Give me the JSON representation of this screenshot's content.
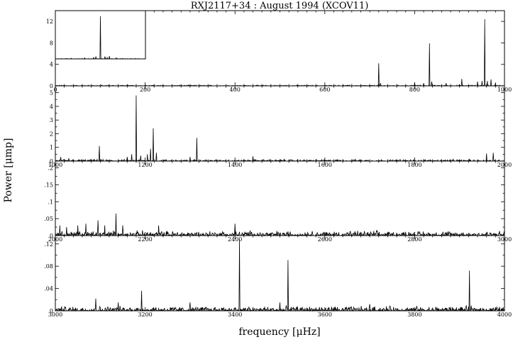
{
  "chart_data": {
    "type": "line",
    "title": "RXJ2117+34 :  August 1994 (XCOV11)",
    "xlabel": "frequency [μHz]",
    "ylabel": "Power [μmp]",
    "grid": false,
    "panels": [
      {
        "xlim": [
          0,
          1000
        ],
        "ylim": [
          0,
          14
        ],
        "xticks": [
          0,
          200,
          400,
          600,
          800,
          1000
        ],
        "xtick_labels": [
          "0",
          "200",
          "400",
          "600",
          "800",
          "1000"
        ],
        "yticks": [
          0,
          4,
          8,
          12
        ],
        "ytick_labels": [
          "0",
          "4",
          "8",
          "12"
        ],
        "noise_level": 0.12,
        "peaks": [
          {
            "x": 720,
            "y": 4.2
          },
          {
            "x": 724,
            "y": 0.5
          },
          {
            "x": 800,
            "y": 0.6
          },
          {
            "x": 820,
            "y": 0.5
          },
          {
            "x": 833,
            "y": 7.9
          },
          {
            "x": 838,
            "y": 0.8
          },
          {
            "x": 870,
            "y": 0.5
          },
          {
            "x": 905,
            "y": 1.3
          },
          {
            "x": 940,
            "y": 0.8
          },
          {
            "x": 950,
            "y": 0.9
          },
          {
            "x": 956,
            "y": 12.4
          },
          {
            "x": 962,
            "y": 0.9
          },
          {
            "x": 970,
            "y": 1.2
          },
          {
            "x": 980,
            "y": 0.6
          }
        ],
        "inset": {
          "xlim": [
            -200,
            200
          ],
          "ylim": [
            0,
            14
          ],
          "noise_level": 0.1,
          "peaks": [
            {
              "x": 0,
              "y": 12.4
            },
            {
              "x": -30,
              "y": 0.4
            },
            {
              "x": 30,
              "y": 0.4
            },
            {
              "x": -20,
              "y": 0.7
            },
            {
              "x": 20,
              "y": 0.7
            },
            {
              "x": 40,
              "y": 0.8
            },
            {
              "x": -70,
              "y": 0.3
            },
            {
              "x": 70,
              "y": 0.3
            },
            {
              "x": -130,
              "y": 0.2
            }
          ]
        }
      },
      {
        "xlim": [
          1000,
          2000
        ],
        "ylim": [
          0,
          5.5
        ],
        "xticks": [
          1000,
          1200,
          1400,
          1600,
          1800,
          2000
        ],
        "xtick_labels": [
          "1000",
          "1200",
          "1400",
          "1600",
          "1800",
          "2000"
        ],
        "yticks": [
          0,
          0.5,
          1,
          1.5,
          2,
          2.5,
          3,
          3.5,
          4,
          4.5,
          5
        ],
        "ytick_labels": [
          "0",
          "",
          "1",
          "",
          "2",
          "",
          "3",
          "",
          "4",
          "",
          "5"
        ],
        "noise_level": 0.1,
        "peaks": [
          {
            "x": 1012,
            "y": 0.3
          },
          {
            "x": 1030,
            "y": 0.2
          },
          {
            "x": 1098,
            "y": 1.1
          },
          {
            "x": 1160,
            "y": 0.3
          },
          {
            "x": 1170,
            "y": 0.5
          },
          {
            "x": 1180,
            "y": 4.8
          },
          {
            "x": 1190,
            "y": 0.4
          },
          {
            "x": 1205,
            "y": 0.5
          },
          {
            "x": 1212,
            "y": 0.9
          },
          {
            "x": 1218,
            "y": 2.4
          },
          {
            "x": 1225,
            "y": 0.6
          },
          {
            "x": 1300,
            "y": 0.3
          },
          {
            "x": 1315,
            "y": 1.7
          },
          {
            "x": 1440,
            "y": 0.35
          },
          {
            "x": 1960,
            "y": 0.55
          },
          {
            "x": 1975,
            "y": 0.6
          }
        ]
      },
      {
        "xlim": [
          2000,
          3000
        ],
        "ylim": [
          0,
          0.22
        ],
        "xticks": [
          2000,
          2200,
          2400,
          2600,
          2800,
          3000
        ],
        "xtick_labels": [
          "2000",
          "2200",
          "2400",
          "2600",
          "2800",
          "3000"
        ],
        "yticks": [
          0,
          0.025,
          0.05,
          0.075,
          0.1,
          0.125,
          0.15,
          0.175,
          0.2
        ],
        "ytick_labels": [
          "0",
          "",
          ".05",
          "",
          ".1",
          "",
          ".15",
          "",
          ".2"
        ],
        "noise_level": 0.012,
        "peaks": [
          {
            "x": 2010,
            "y": 0.03
          },
          {
            "x": 2025,
            "y": 0.025
          },
          {
            "x": 2050,
            "y": 0.03
          },
          {
            "x": 2068,
            "y": 0.035
          },
          {
            "x": 2095,
            "y": 0.045
          },
          {
            "x": 2110,
            "y": 0.03
          },
          {
            "x": 2135,
            "y": 0.065
          },
          {
            "x": 2150,
            "y": 0.03
          },
          {
            "x": 2230,
            "y": 0.03
          },
          {
            "x": 2400,
            "y": 0.035
          }
        ]
      },
      {
        "xlim": [
          3000,
          4000
        ],
        "ylim": [
          0,
          0.135
        ],
        "xticks": [
          3000,
          3200,
          3400,
          3600,
          3800,
          4000
        ],
        "xtick_labels": [
          "3000",
          "3200",
          "3400",
          "3600",
          "3800",
          "4000"
        ],
        "yticks": [
          0,
          0.02,
          0.04,
          0.06,
          0.08,
          0.1,
          0.12
        ],
        "ytick_labels": [
          "0",
          "",
          ".04",
          "",
          ".08",
          "",
          ".12"
        ],
        "noise_level": 0.007,
        "peaks": [
          {
            "x": 3090,
            "y": 0.022
          },
          {
            "x": 3140,
            "y": 0.015
          },
          {
            "x": 3192,
            "y": 0.036
          },
          {
            "x": 3300,
            "y": 0.015
          },
          {
            "x": 3410,
            "y": 0.128
          },
          {
            "x": 3500,
            "y": 0.015
          },
          {
            "x": 3518,
            "y": 0.091
          },
          {
            "x": 3700,
            "y": 0.012
          },
          {
            "x": 3922,
            "y": 0.072
          }
        ]
      }
    ]
  }
}
